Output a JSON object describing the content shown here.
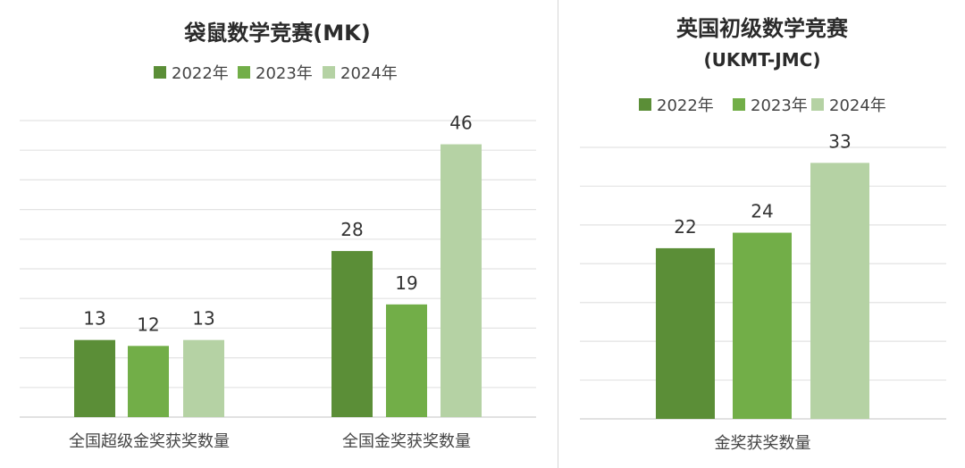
{
  "colors": [
    "#5b8e37",
    "#72ae48",
    "#b5d2a4"
  ],
  "chart_data": [
    {
      "type": "bar",
      "title": "袋鼠数学竞赛(MK)",
      "subtitle": "",
      "categories": [
        "全国超级金奖获奖数量",
        "全国金奖获奖数量"
      ],
      "series": [
        {
          "name": "2022年",
          "values": [
            13,
            28
          ]
        },
        {
          "name": "2023年",
          "values": [
            12,
            19
          ]
        },
        {
          "name": "2024年",
          "values": [
            13,
            46
          ]
        }
      ],
      "ylim": [
        0,
        50
      ],
      "ytick_step": 5,
      "grid": true,
      "legend": "top"
    },
    {
      "type": "bar",
      "title": "英国初级数学竞赛",
      "subtitle": "(UKMT-JMC)",
      "categories": [
        "金奖获奖数量"
      ],
      "series": [
        {
          "name": "2022年",
          "values": [
            22
          ]
        },
        {
          "name": "2023年",
          "values": [
            24
          ]
        },
        {
          "name": "2024年",
          "values": [
            33
          ]
        }
      ],
      "ylim": [
        0,
        35
      ],
      "ytick_step": 5,
      "grid": true,
      "legend": "top"
    }
  ]
}
